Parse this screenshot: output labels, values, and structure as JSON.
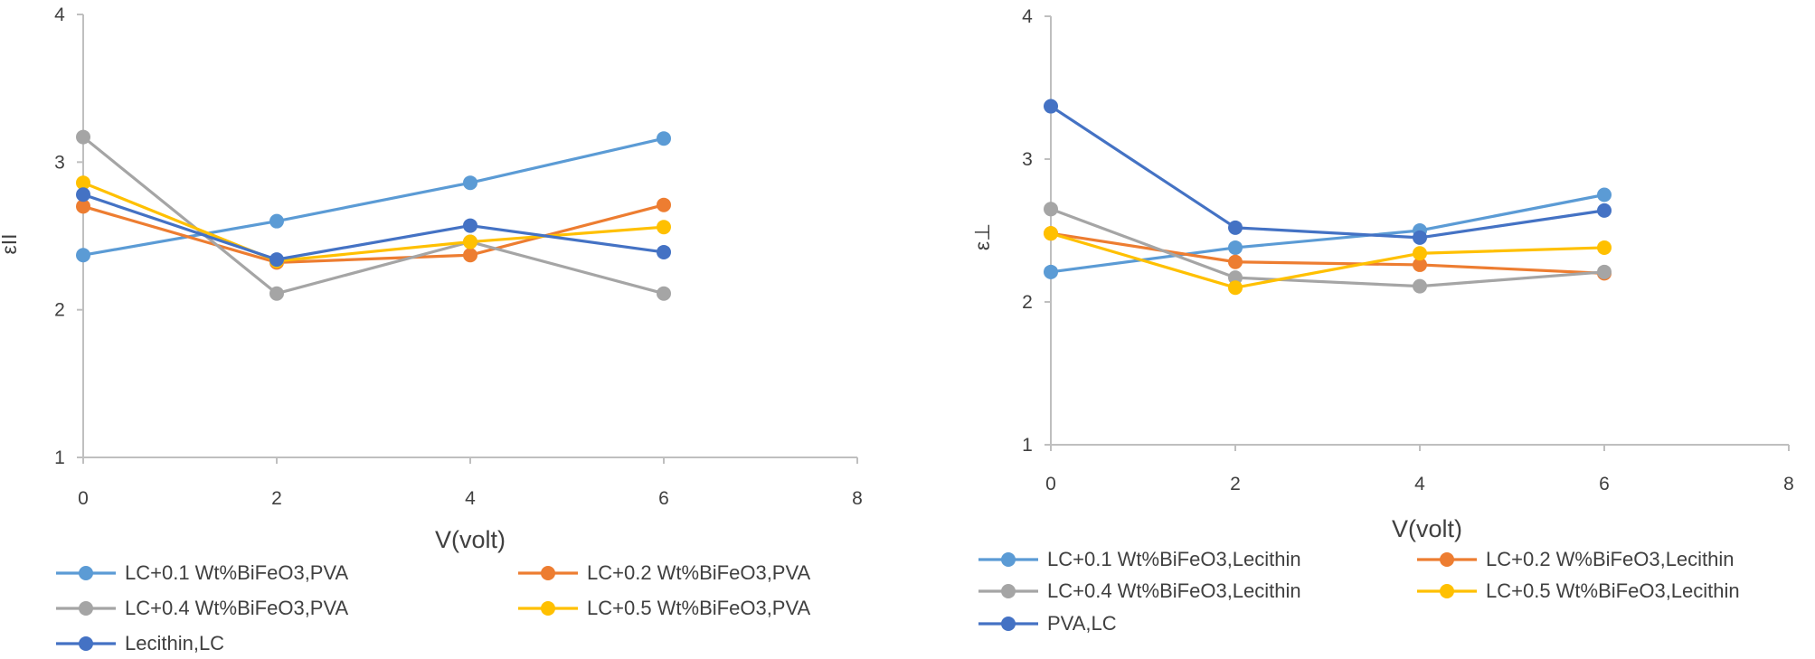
{
  "chart_data": [
    {
      "type": "line",
      "title": "",
      "xlabel": "V(volt)",
      "ylabel": "εII",
      "xlim": [
        0,
        8
      ],
      "ylim": [
        1,
        4
      ],
      "xticks": [
        "0",
        "2",
        "4",
        "6",
        "8"
      ],
      "yticks": [
        "1",
        "2",
        "3",
        "4"
      ],
      "grid": false,
      "legend_position": "bottom",
      "x": [
        0,
        2,
        4,
        6
      ],
      "series": [
        {
          "name": "LC+0.1 Wt%BiFeO3,PVA",
          "color": "#5B9BD5",
          "values": [
            2.37,
            2.6,
            2.86,
            3.16
          ]
        },
        {
          "name": "LC+0.2 Wt%BiFeO3,PVA",
          "color": "#ED7D31",
          "values": [
            2.7,
            2.32,
            2.37,
            2.71
          ]
        },
        {
          "name": "LC+0.4 Wt%BiFeO3,PVA",
          "color": "#A5A5A5",
          "values": [
            3.17,
            2.11,
            2.46,
            2.11
          ]
        },
        {
          "name": "LC+0.5 Wt%BiFeO3,PVA",
          "color": "#FFC000",
          "values": [
            2.86,
            2.33,
            2.46,
            2.56
          ]
        },
        {
          "name": "Lecithin,LC",
          "color": "#4472C4",
          "values": [
            2.78,
            2.34,
            2.57,
            2.39
          ]
        }
      ]
    },
    {
      "type": "line",
      "title": "",
      "xlabel": "V(volt)",
      "ylabel": "ε⊥",
      "xlim": [
        0,
        8
      ],
      "ylim": [
        1,
        4
      ],
      "xticks": [
        "0",
        "2",
        "4",
        "6",
        "8"
      ],
      "yticks": [
        "1",
        "2",
        "3",
        "4"
      ],
      "grid": false,
      "legend_position": "bottom",
      "x": [
        0,
        2,
        4,
        6
      ],
      "series": [
        {
          "name": "LC+0.1 Wt%BiFeO3,Lecithin",
          "color": "#5B9BD5",
          "values": [
            2.21,
            2.38,
            2.5,
            2.75
          ]
        },
        {
          "name": "LC+0.2 W%BiFeO3,Lecithin",
          "color": "#ED7D31",
          "values": [
            2.48,
            2.28,
            2.26,
            2.2
          ]
        },
        {
          "name": "LC+0.4 Wt%BiFeO3,Lecithin",
          "color": "#A5A5A5",
          "values": [
            2.65,
            2.17,
            2.11,
            2.21
          ]
        },
        {
          "name": "LC+0.5 Wt%BiFeO3,Lecithin",
          "color": "#FFC000",
          "values": [
            2.48,
            2.1,
            2.34,
            2.38
          ]
        },
        {
          "name": "PVA,LC",
          "color": "#4472C4",
          "values": [
            3.37,
            2.52,
            2.45,
            2.64
          ]
        }
      ]
    }
  ]
}
